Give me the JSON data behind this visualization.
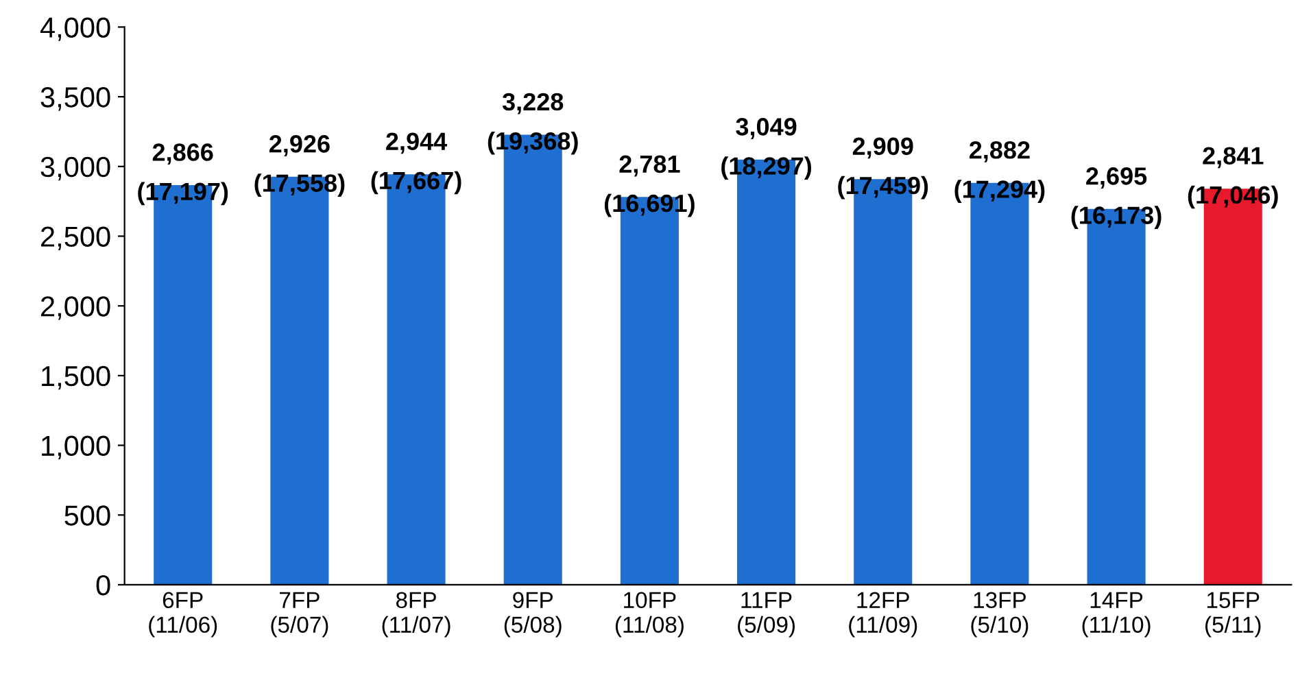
{
  "chart_data": {
    "type": "bar",
    "categories": [
      "6FP\n(11/06)",
      "7FP\n(5/07)",
      "8FP\n(11/07)",
      "9FP\n(5/08)",
      "10FP\n(11/08)",
      "11FP\n(5/09)",
      "12FP\n(11/09)",
      "13FP\n(5/10)",
      "14FP\n(11/10)",
      "15FP\n(5/11)"
    ],
    "values": [
      2866,
      2926,
      2944,
      3228,
      2781,
      3049,
      2909,
      2882,
      2695,
      2841
    ],
    "colors": [
      "#1f6fd0",
      "#1f6fd0",
      "#1f6fd0",
      "#1f6fd0",
      "#1f6fd0",
      "#1f6fd0",
      "#1f6fd0",
      "#1f6fd0",
      "#1f6fd0",
      "#e8192c"
    ],
    "value_labels": [
      "2,866\n(17,197)",
      "2,926\n(17,558)",
      "2,944\n(17,667)",
      "3,228\n(19,368)",
      "2,781\n(16,691)",
      "3,049\n(18,297)",
      "2,909\n(17,459)",
      "2,882\n(17,294)",
      "2,695\n(16,173)",
      "2,841\n(17,046)"
    ],
    "ylim": [
      0,
      4000
    ],
    "yticks": [
      {
        "value": 0,
        "label": "0"
      },
      {
        "value": 500,
        "label": "500"
      },
      {
        "value": 1000,
        "label": "1,000"
      },
      {
        "value": 1500,
        "label": "1,500"
      },
      {
        "value": 2000,
        "label": "2,000"
      },
      {
        "value": 2500,
        "label": "2,500"
      },
      {
        "value": 3000,
        "label": "3,000"
      },
      {
        "value": 3500,
        "label": "3,500"
      },
      {
        "value": 4000,
        "label": "4,000"
      }
    ],
    "grid": false,
    "legend": false
  }
}
